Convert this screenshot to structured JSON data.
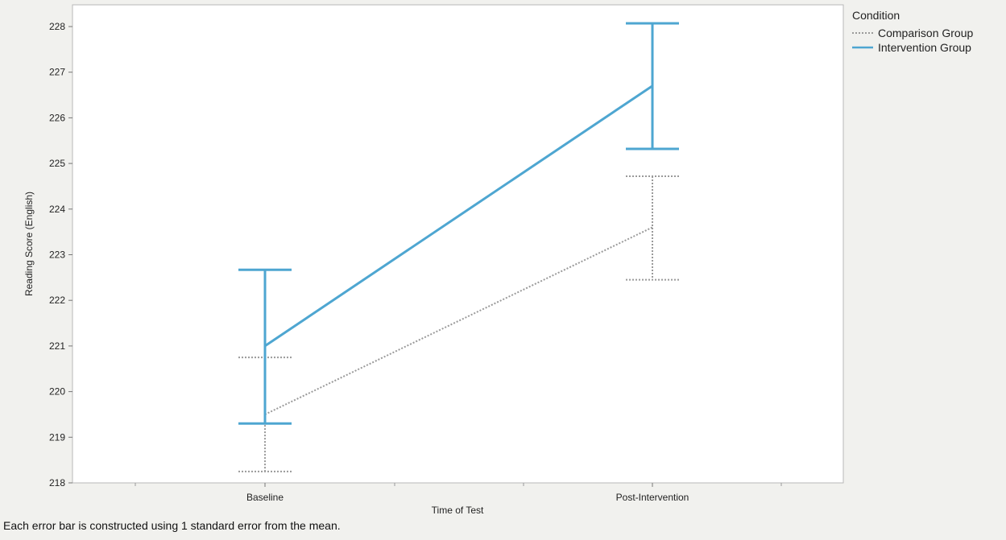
{
  "chart_data": {
    "type": "line",
    "title": "",
    "xlabel": "Time of Test",
    "ylabel": "Reading Score (English)",
    "categories": [
      "Baseline",
      "Post-Intervention"
    ],
    "ylim": [
      218,
      228
    ],
    "yticks": [
      218,
      219,
      220,
      221,
      222,
      223,
      224,
      225,
      226,
      227,
      228
    ],
    "grid": false,
    "legend": {
      "title": "Condition",
      "placement": "right"
    },
    "error_bars": "1 standard error",
    "series": [
      {
        "name": "Comparison Group",
        "values": [
          219.5,
          223.6
        ],
        "lower": [
          218.25,
          222.45
        ],
        "upper": [
          220.75,
          224.72
        ],
        "color": "#9a9a9a",
        "style": "dotted"
      },
      {
        "name": "Intervention Group",
        "values": [
          221.0,
          226.7
        ],
        "lower": [
          219.3,
          225.32
        ],
        "upper": [
          222.67,
          228.07
        ],
        "color": "#4ea6d1",
        "style": "solid"
      }
    ]
  },
  "footnote": "Each error bar is constructed using 1 standard error from the mean."
}
